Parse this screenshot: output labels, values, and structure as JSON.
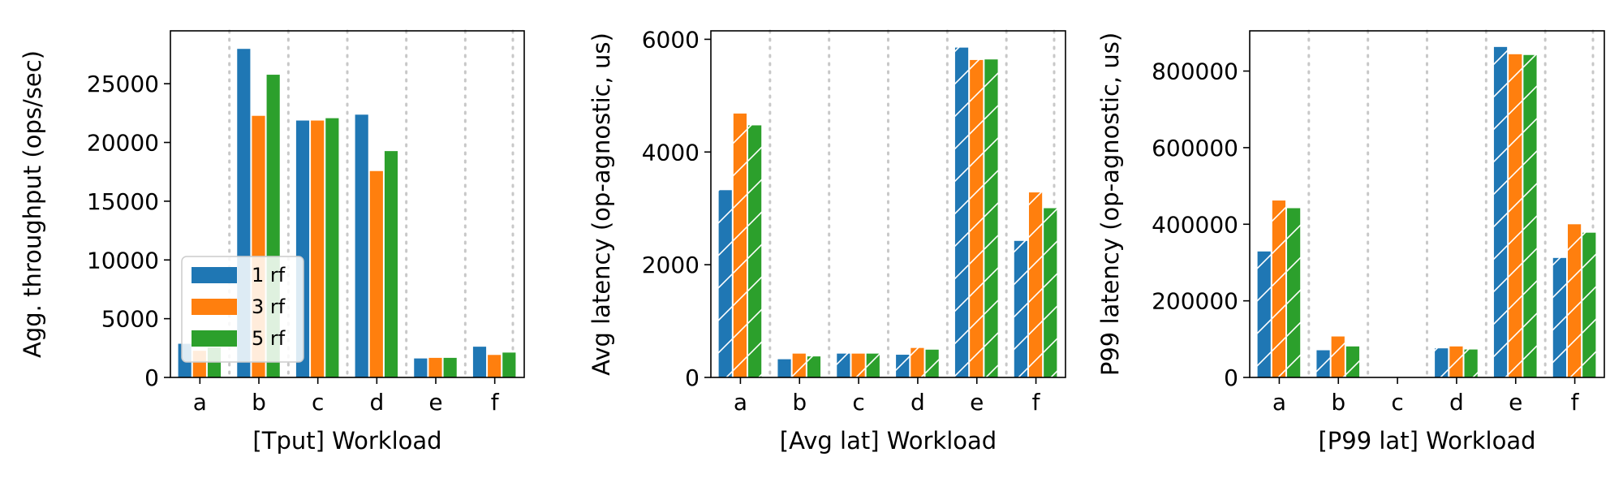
{
  "series_colors": [
    "#1f77b4",
    "#ff7f0e",
    "#2ca02c"
  ],
  "chart_data": [
    {
      "type": "bar",
      "categories": [
        "a",
        "b",
        "c",
        "d",
        "e",
        "f"
      ],
      "xlabel": "[Tput]  Workload",
      "ylabel": "Agg. throughput (ops/sec)",
      "ylim": [
        0,
        29500
      ],
      "yticks": [
        0,
        5000,
        10000,
        15000,
        20000,
        25000
      ],
      "ytick_labels": [
        "0",
        "5000",
        "10000",
        "15000",
        "20000",
        "25000"
      ],
      "hatch": false,
      "legend": "lower-left",
      "series": [
        {
          "name": "1 rf",
          "values": [
            2900,
            28000,
            21900,
            22400,
            1650,
            2650
          ]
        },
        {
          "name": "3 rf",
          "values": [
            2300,
            22300,
            21900,
            17600,
            1700,
            1950
          ]
        },
        {
          "name": "5 rf",
          "values": [
            2600,
            25800,
            22100,
            19300,
            1700,
            2150
          ]
        }
      ]
    },
    {
      "type": "bar",
      "categories": [
        "a",
        "b",
        "c",
        "d",
        "e",
        "f"
      ],
      "xlabel": "[Avg lat]  Workload",
      "ylabel": "Avg latency (op-agnostic, us)",
      "ylim": [
        0,
        6150
      ],
      "yticks": [
        0,
        2000,
        4000,
        6000
      ],
      "ytick_labels": [
        "0",
        "2000",
        "4000",
        "6000"
      ],
      "hatch": true,
      "series": [
        {
          "name": "1 rf",
          "values": [
            3330,
            330,
            430,
            410,
            5860,
            2430
          ]
        },
        {
          "name": "3 rf",
          "values": [
            4690,
            430,
            430,
            530,
            5640,
            3290
          ]
        },
        {
          "name": "5 rf",
          "values": [
            4480,
            380,
            430,
            500,
            5650,
            3010
          ]
        }
      ]
    },
    {
      "type": "bar",
      "categories": [
        "a",
        "b",
        "c",
        "d",
        "e",
        "f"
      ],
      "xlabel": "[P99 lat]  Workload",
      "ylabel": "P99 latency (op-agnostic, us)",
      "ylim": [
        0,
        905000
      ],
      "yticks": [
        0,
        200000,
        400000,
        600000,
        800000
      ],
      "ytick_labels": [
        "0",
        "200000",
        "400000",
        "600000",
        "800000"
      ],
      "hatch": true,
      "series": [
        {
          "name": "1 rf",
          "values": [
            330000,
            72000,
            0,
            77000,
            864000,
            313000
          ]
        },
        {
          "name": "3 rf",
          "values": [
            463000,
            108000,
            0,
            82000,
            845000,
            401000
          ]
        },
        {
          "name": "5 rf",
          "values": [
            443000,
            82000,
            0,
            74000,
            843000,
            379000
          ]
        }
      ]
    }
  ]
}
